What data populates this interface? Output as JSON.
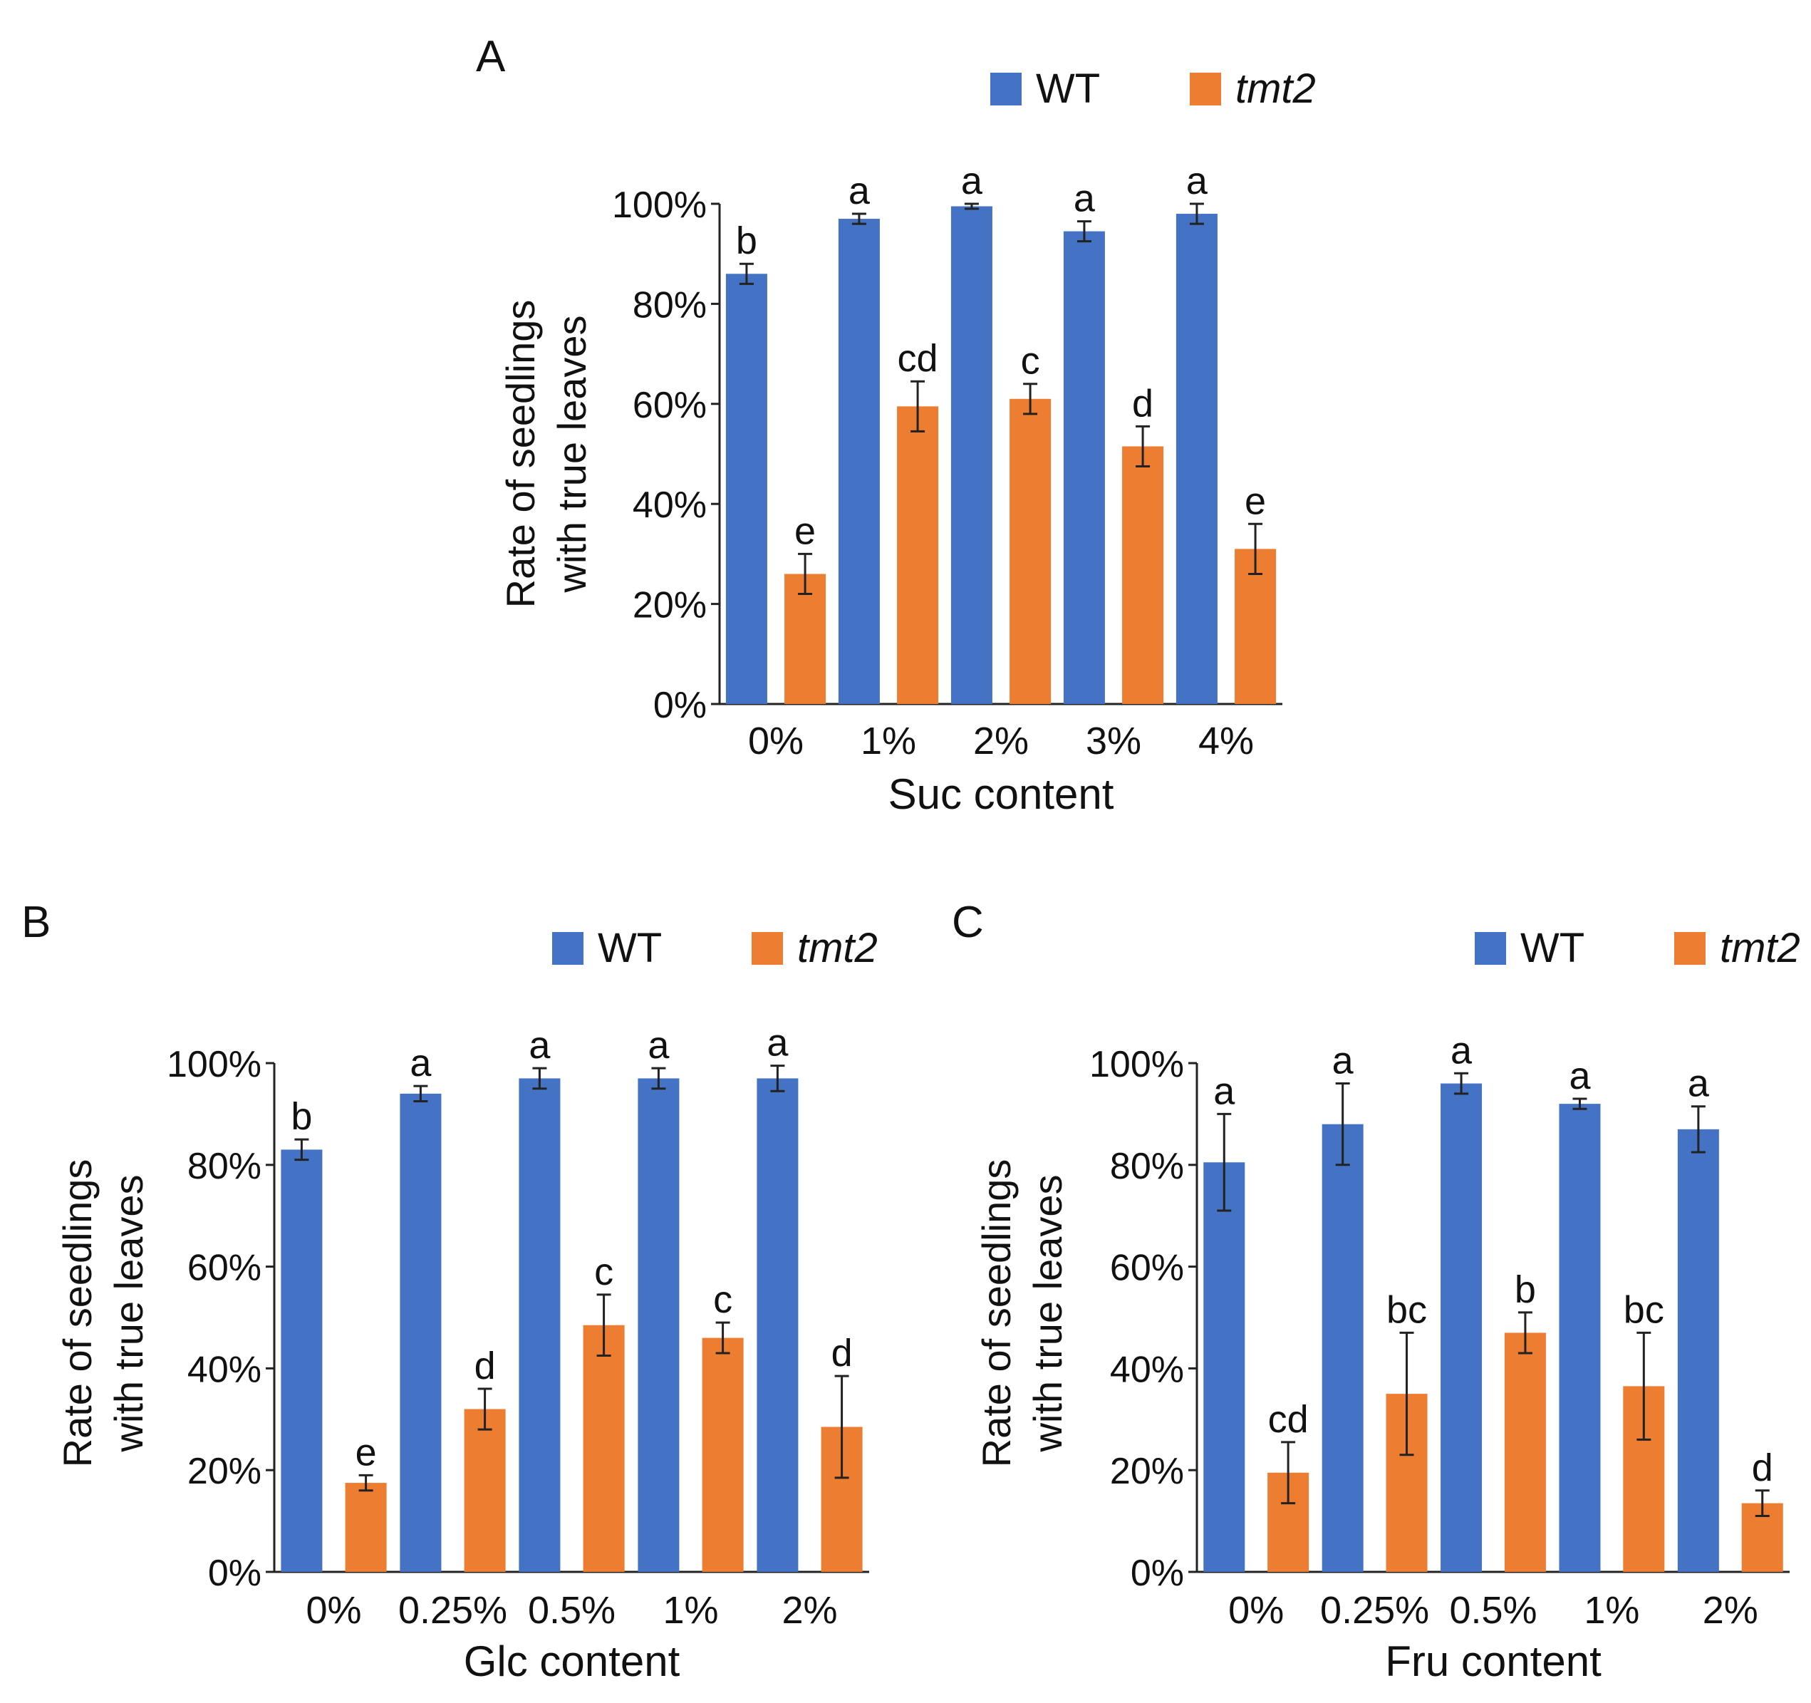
{
  "colors": {
    "wt": "#4472C4",
    "tmt2": "#ED7D31",
    "axis": "#222222",
    "text": "#111111"
  },
  "chart_data": [
    {
      "id": "A",
      "panel_label": "A",
      "type": "bar",
      "title": "",
      "xlabel": "Suc  content",
      "ylabel": "Rate of seedlings with true leaves",
      "ylabel_lines": [
        "Rate of seedlings",
        "with true leaves"
      ],
      "ylim": [
        0,
        100
      ],
      "yticks": [
        "0%",
        "20%",
        "40%",
        "60%",
        "80%",
        "100%"
      ],
      "categories": [
        "0%",
        "1%",
        "2%",
        "3%",
        "4%"
      ],
      "legend": "top-right",
      "series": [
        {
          "name": "WT",
          "italic": false,
          "color": "#4472C4",
          "values": [
            86,
            97,
            99.5,
            94.5,
            98
          ],
          "errors": [
            2,
            1,
            0.5,
            2,
            2
          ],
          "letters": [
            "b",
            "a",
            "a",
            "a",
            "a"
          ]
        },
        {
          "name": "tmt2",
          "italic": true,
          "color": "#ED7D31",
          "values": [
            26,
            59.5,
            61,
            51.5,
            31
          ],
          "errors": [
            4,
            5,
            3,
            4,
            5
          ],
          "letters": [
            "e",
            "cd",
            "c",
            "d",
            "e"
          ]
        }
      ]
    },
    {
      "id": "B",
      "panel_label": "B",
      "type": "bar",
      "title": "",
      "xlabel": "Glc  content",
      "ylabel": "Rate of seedlings with true leaves",
      "ylabel_lines": [
        "Rate of seedlings",
        "with true leaves"
      ],
      "ylim": [
        0,
        100
      ],
      "yticks": [
        "0%",
        "20%",
        "40%",
        "60%",
        "80%",
        "100%"
      ],
      "categories": [
        "0%",
        "0.25%",
        "0.5%",
        "1%",
        "2%"
      ],
      "legend": "top-right",
      "series": [
        {
          "name": "WT",
          "italic": false,
          "color": "#4472C4",
          "values": [
            83,
            94,
            97,
            97,
            97
          ],
          "errors": [
            2,
            1.5,
            2,
            2,
            2.5
          ],
          "letters": [
            "b",
            "a",
            "a",
            "a",
            "a"
          ]
        },
        {
          "name": "tmt2",
          "italic": true,
          "color": "#ED7D31",
          "values": [
            17.5,
            32,
            48.5,
            46,
            28.5
          ],
          "errors": [
            1.5,
            4,
            6,
            3,
            10
          ],
          "letters": [
            "e",
            "d",
            "c",
            "c",
            "d"
          ]
        }
      ]
    },
    {
      "id": "C",
      "panel_label": "C",
      "type": "bar",
      "title": "",
      "xlabel": "Fru  content",
      "ylabel": "Rate of seedlings with true leaves",
      "ylabel_lines": [
        "Rate of seedlings",
        "with true leaves"
      ],
      "ylim": [
        0,
        100
      ],
      "yticks": [
        "0%",
        "20%",
        "40%",
        "60%",
        "80%",
        "100%"
      ],
      "categories": [
        "0%",
        "0.25%",
        "0.5%",
        "1%",
        "2%"
      ],
      "legend": "top-right",
      "series": [
        {
          "name": "WT",
          "italic": false,
          "color": "#4472C4",
          "values": [
            80.5,
            88,
            96,
            92,
            87
          ],
          "errors": [
            9.5,
            8,
            2,
            1,
            4.5
          ],
          "letters": [
            "a",
            "a",
            "a",
            "a",
            "a"
          ]
        },
        {
          "name": "tmt2",
          "italic": true,
          "color": "#ED7D31",
          "values": [
            19.5,
            35,
            47,
            36.5,
            13.5
          ],
          "errors": [
            6,
            12,
            4,
            10.5,
            2.5
          ],
          "letters": [
            "cd",
            "bc",
            "b",
            "bc",
            "d"
          ]
        }
      ]
    }
  ]
}
